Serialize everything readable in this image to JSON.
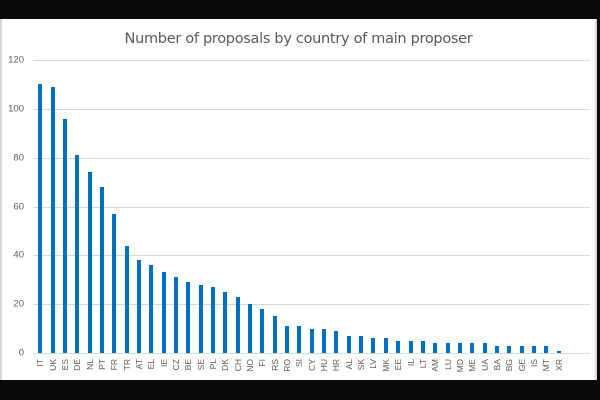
{
  "chart_data": {
    "type": "bar",
    "title": "Number of proposals by country of main proposer",
    "xlabel": "",
    "ylabel": "",
    "ylim": [
      0,
      120
    ],
    "yticks": [
      0,
      20,
      40,
      60,
      80,
      100,
      120
    ],
    "grid": true,
    "legend": "none",
    "bar_color": "#0070c0",
    "categories": [
      "IT",
      "UK",
      "ES",
      "DE",
      "NL",
      "PT",
      "FR",
      "TR",
      "AT",
      "EL",
      "IE",
      "CZ",
      "BE",
      "SE",
      "PL",
      "DK",
      "CH",
      "NO",
      "FI",
      "RS",
      "RO",
      "SI",
      "CY",
      "HU",
      "HR",
      "AL",
      "SK",
      "LV",
      "MK",
      "EE",
      "IL",
      "LT",
      "AM",
      "LU",
      "MD",
      "ME",
      "UA",
      "BA",
      "BG",
      "GE",
      "IS",
      "MT",
      "XR"
    ],
    "values": [
      110,
      109,
      96,
      81,
      74,
      68,
      57,
      44,
      38,
      36,
      33,
      31,
      29,
      28,
      27,
      25,
      23,
      20,
      18,
      15,
      11,
      11,
      10,
      10,
      9,
      7,
      7,
      6,
      6,
      5,
      5,
      5,
      4,
      4,
      4,
      4,
      4,
      3,
      3,
      3,
      3,
      3,
      1
    ]
  }
}
